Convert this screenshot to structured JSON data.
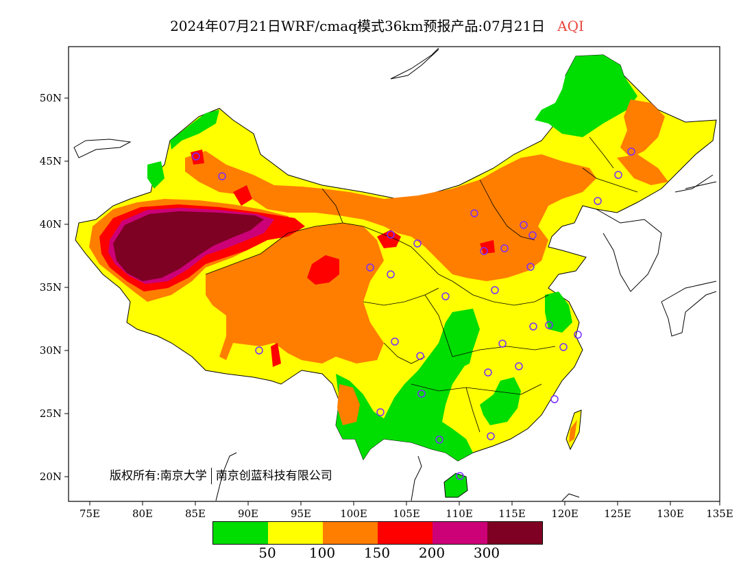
{
  "title": {
    "main": "2024年07月21日WRF/cmaq模式36km预报产品:07月21日",
    "variable": "AQI"
  },
  "latitude_labels": [
    "50N",
    "45N",
    "40N",
    "35N",
    "30N",
    "25N",
    "20N"
  ],
  "longitude_labels": [
    "75E",
    "80E",
    "85E",
    "90E",
    "95E",
    "100E",
    "105E",
    "110E",
    "115E",
    "120E",
    "125E",
    "130E",
    "135E"
  ],
  "copyright": {
    "prefix": "版权所有:南京大学",
    "suffix": "南京创蓝科技有限公司"
  },
  "legend": {
    "colors": [
      "#00dd00",
      "#ffff00",
      "#ff7e00",
      "#ff0000",
      "#cc0077",
      "#7e0023"
    ],
    "labels": [
      "50",
      "100",
      "150",
      "200",
      "300"
    ]
  },
  "colors": {
    "good": "#00dd00",
    "moderate": "#ffff00",
    "unhealthy_sensitive": "#ff7e00",
    "unhealthy": "#ff0000",
    "very_unhealthy": "#cc0077",
    "hazardous": "#7e0023",
    "station_marker": "#7a2cff"
  }
}
